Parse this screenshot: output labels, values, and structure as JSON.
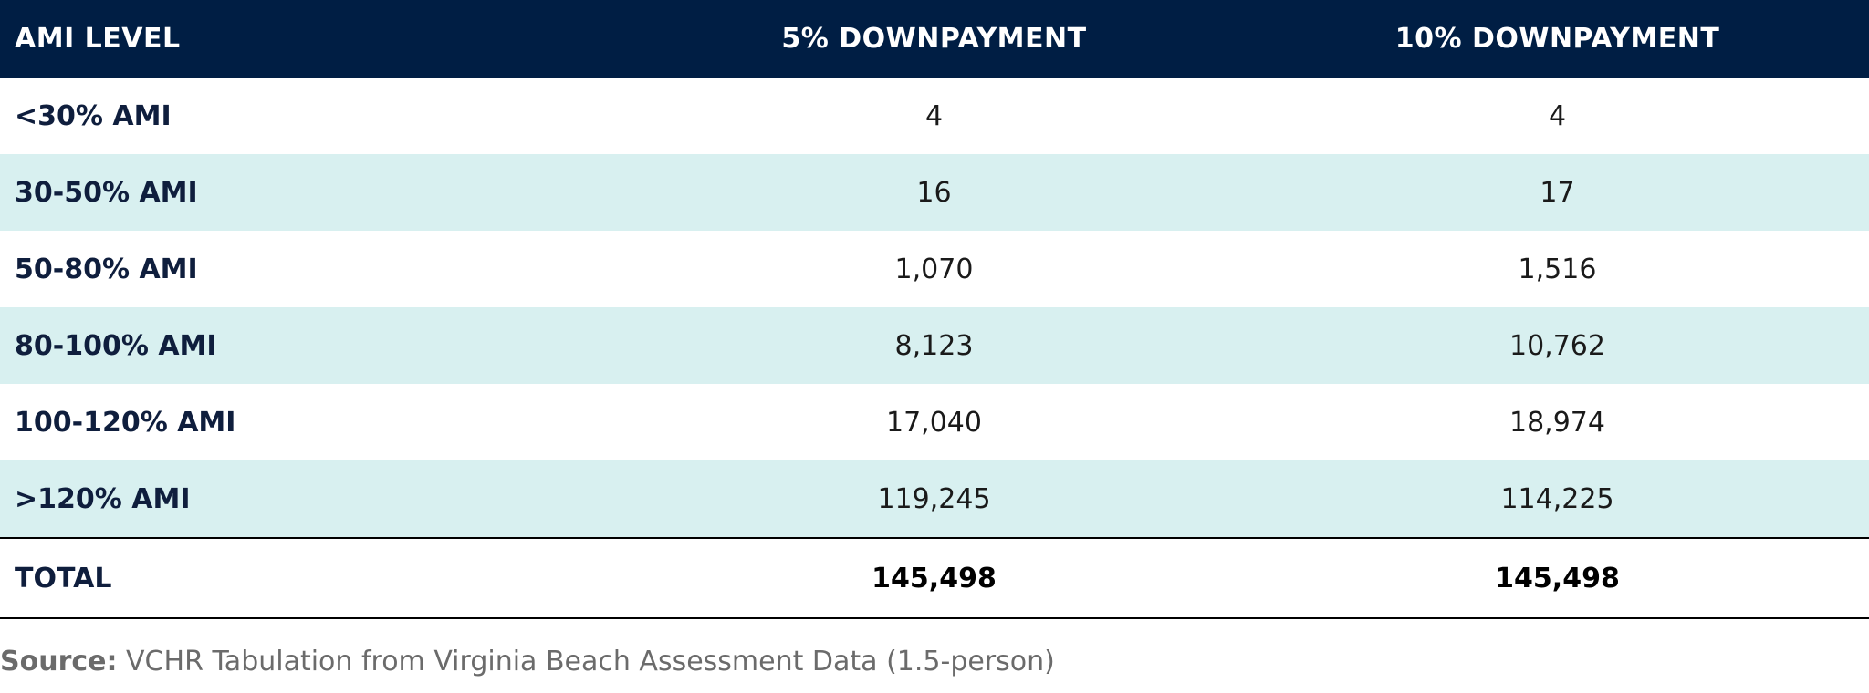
{
  "table": {
    "headers": [
      "AMI LEVEL",
      "5% DOWNPAYMENT",
      "10% DOWNPAYMENT"
    ],
    "rows": [
      {
        "level": "<30% AMI",
        "five": "4",
        "ten": "4"
      },
      {
        "level": "30-50% AMI",
        "five": "16",
        "ten": "17"
      },
      {
        "level": "50-80% AMI",
        "five": "1,070",
        "ten": "1,516"
      },
      {
        "level": "80-100% AMI",
        "five": "8,123",
        "ten": "10,762"
      },
      {
        "level": "100-120% AMI",
        "five": "17,040",
        "ten": "18,974"
      },
      {
        "level": ">120% AMI",
        "five": "119,245",
        "ten": "114,225"
      }
    ],
    "total": {
      "label": "TOTAL",
      "five": "145,498",
      "ten": "145,498"
    }
  },
  "source": {
    "label": "Source:",
    "text": " VCHR Tabulation from Virginia Beach Assessment Data (1.5-person)"
  },
  "colors": {
    "header_bg": "#001e44",
    "alt_row_bg": "#d8f0f0",
    "label_text": "#0f1e3d"
  }
}
